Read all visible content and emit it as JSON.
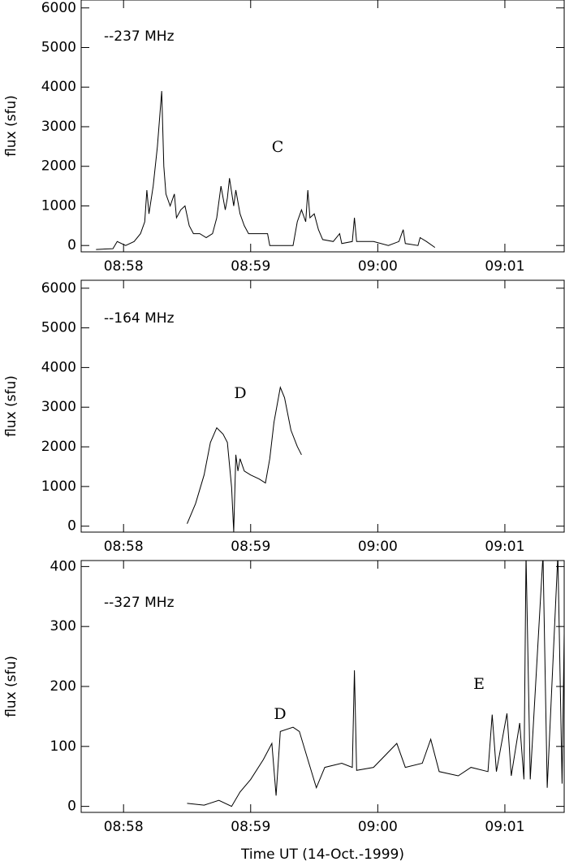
{
  "chart_data": [
    {
      "type": "line",
      "ylabel": "flux (sfu)",
      "xlim": [
        "08:57:40",
        "09:01:28"
      ],
      "xticks": [
        "08:58",
        "08:59",
        "09:00",
        "09:01"
      ],
      "ylim": [
        -160,
        6200
      ],
      "yticks": [
        0,
        1000,
        2000,
        3000,
        4000,
        5000,
        6000
      ],
      "annotations": [
        "C"
      ],
      "series": [
        {
          "name": "--237 MHz",
          "color": "#000000",
          "x": [
            "08:57:47",
            "08:57:55",
            "08:57:57",
            "08:58:01",
            "08:58:05",
            "08:58:08",
            "08:58:10",
            "08:58:11",
            "08:58:12",
            "08:58:14",
            "08:58:16",
            "08:58:18",
            "08:58:19",
            "08:58:20",
            "08:58:22",
            "08:58:24",
            "08:58:25",
            "08:58:27",
            "08:58:29",
            "08:58:31",
            "08:58:33",
            "08:58:36",
            "08:58:39",
            "08:58:42",
            "08:58:44",
            "08:58:46",
            "08:58:48",
            "08:58:49",
            "08:58:50",
            "08:58:52",
            "08:58:53",
            "08:58:55",
            "08:58:57",
            "08:58:59",
            "08:59:08",
            "08:59:09",
            "08:59:20",
            "08:59:22",
            "08:59:24",
            "08:59:26",
            "08:59:27",
            "08:59:28",
            "08:59:30",
            "08:59:32",
            "08:59:34",
            "08:59:39",
            "08:59:42",
            "08:59:43",
            "08:59:48",
            "08:59:49",
            "08:59:50",
            "08:59:58",
            "09:00:05",
            "09:00:10",
            "09:00:12",
            "09:00:13",
            "09:00:19",
            "09:00:20",
            "09:00:23",
            "09:00:27"
          ],
          "values": [
            -100,
            -80,
            100,
            0,
            100,
            300,
            600,
            1400,
            800,
            1500,
            2500,
            3900,
            2000,
            1300,
            1000,
            1300,
            700,
            900,
            1000,
            500,
            300,
            300,
            200,
            300,
            700,
            1500,
            900,
            1200,
            1700,
            1000,
            1400,
            800,
            500,
            300,
            300,
            0,
            0,
            600,
            900,
            600,
            1400,
            700,
            800,
            400,
            150,
            100,
            300,
            50,
            100,
            700,
            100,
            100,
            0,
            100,
            400,
            50,
            0,
            200,
            100,
            -50
          ]
        }
      ]
    },
    {
      "type": "line",
      "ylabel": "flux (sfu)",
      "xlim": [
        "08:57:40",
        "09:01:28"
      ],
      "xticks": [
        "08:58",
        "08:59",
        "09:00",
        "09:01"
      ],
      "ylim": [
        -150,
        6200
      ],
      "yticks": [
        0,
        1000,
        2000,
        3000,
        4000,
        5000,
        6000
      ],
      "annotations": [
        "D"
      ],
      "series": [
        {
          "name": "--164 MHz",
          "color": "#000000",
          "x": [
            "08:58:30",
            "08:58:34",
            "08:58:38",
            "08:58:41",
            "08:58:44",
            "08:58:47",
            "08:58:49",
            "08:58:51",
            "08:58:52",
            "08:58:53",
            "08:58:54",
            "08:58:55",
            "08:58:57",
            "08:59:00",
            "08:59:04",
            "08:59:07",
            "08:59:09",
            "08:59:11",
            "08:59:14",
            "08:59:16",
            "08:59:19",
            "08:59:22",
            "08:59:24"
          ],
          "values": [
            60,
            570,
            1290,
            2110,
            2480,
            2320,
            2110,
            980,
            -140,
            1800,
            1390,
            1700,
            1390,
            1290,
            1190,
            1090,
            1700,
            2620,
            3500,
            3240,
            2420,
            2010,
            1800
          ]
        }
      ]
    },
    {
      "type": "line",
      "ylabel": "flux (sfu)",
      "xlabel": "Time UT (14-Oct.-1999)",
      "xlim": [
        "08:57:40",
        "09:01:28"
      ],
      "xticks": [
        "08:58",
        "08:59",
        "09:00",
        "09:01"
      ],
      "ylim": [
        -10,
        410
      ],
      "yticks": [
        0,
        100,
        200,
        300,
        400
      ],
      "annotations": [
        "D",
        "E"
      ],
      "series": [
        {
          "name": "--327 MHz",
          "color": "#000000",
          "x": [
            "08:58:30",
            "08:58:38",
            "08:58:45",
            "08:58:51",
            "08:58:55",
            "08:59:00",
            "08:59:06",
            "08:59:10",
            "08:59:12",
            "08:59:14",
            "08:59:20",
            "08:59:23",
            "08:59:27",
            "08:59:31",
            "08:59:35",
            "08:59:43",
            "08:59:48",
            "08:59:49",
            "08:59:50",
            "08:59:58",
            "09:00:09",
            "09:00:13",
            "09:00:21",
            "09:00:25",
            "09:00:29",
            "09:00:38",
            "09:00:44",
            "09:00:52",
            "09:00:54",
            "09:00:56",
            "09:01:01",
            "09:01:03",
            "09:01:07",
            "09:01:09",
            "09:01:10",
            "09:01:12",
            "09:01:18",
            "09:01:20",
            "09:01:25",
            "09:01:27",
            "09:01:28"
          ],
          "values": [
            5,
            2,
            10,
            0,
            24,
            45,
            78,
            105,
            18,
            125,
            132,
            125,
            78,
            31,
            65,
            72,
            65,
            227,
            60,
            65,
            105,
            65,
            72,
            112,
            58,
            51,
            65,
            58,
            153,
            58,
            155,
            51,
            139,
            45,
            420,
            45,
            420,
            31,
            420,
            38,
            288
          ]
        }
      ]
    }
  ]
}
